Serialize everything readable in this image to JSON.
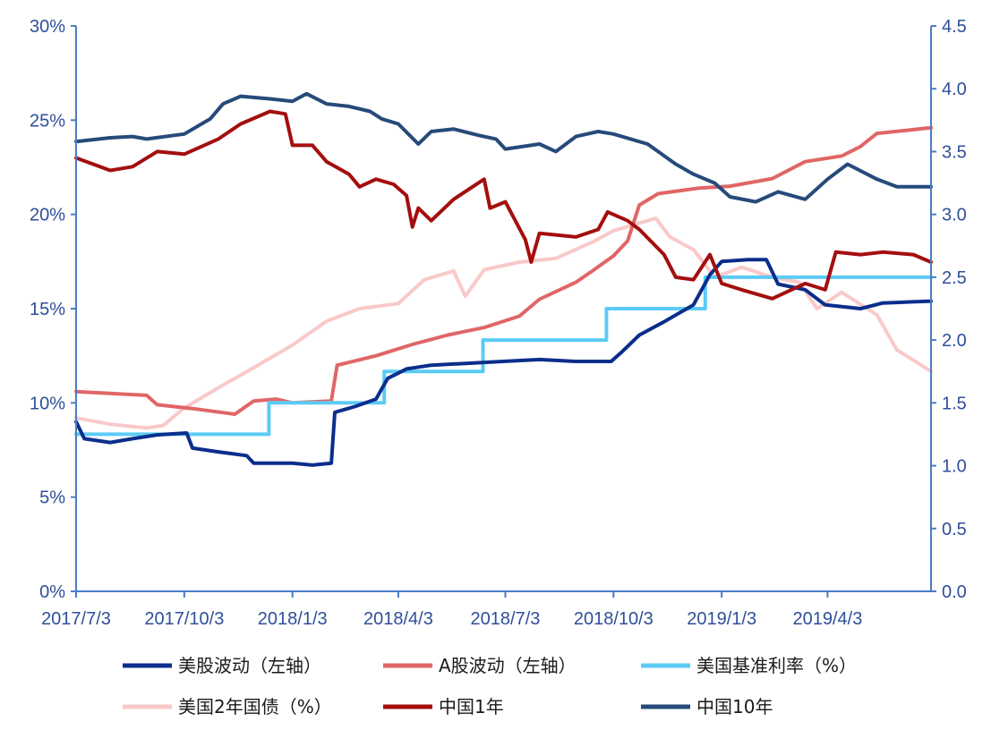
{
  "chart_data": {
    "type": "line",
    "title": "",
    "y_left": {
      "ticks": [
        "0%",
        "5%",
        "10%",
        "15%",
        "20%",
        "25%",
        "30%"
      ],
      "ylim": [
        0,
        30
      ]
    },
    "y_right": {
      "ticks": [
        "0.0",
        "0.5",
        "1.0",
        "1.5",
        "2.0",
        "2.5",
        "3.0",
        "3.5",
        "4.0",
        "4.5"
      ],
      "ylim": [
        0,
        4.5
      ]
    },
    "x_ticks": [
      "2017/7/3",
      "2017/10/3",
      "2018/1/3",
      "2018/4/3",
      "2018/7/3",
      "2018/10/3",
      "2019/1/3",
      "2019/4/3"
    ],
    "x_range": [
      "2017/7/3",
      "2019/6/30"
    ],
    "grid": false,
    "legend_position": "bottom",
    "series": [
      {
        "name": "美股波动（左轴）",
        "axis": "left",
        "color": "#0b2e8c",
        "width": 4,
        "step": false,
        "points": [
          [
            "2017/7/3",
            9.0
          ],
          [
            "2017/7/10",
            8.1
          ],
          [
            "2017/8/1",
            7.9
          ],
          [
            "2017/8/20",
            8.1
          ],
          [
            "2017/9/10",
            8.3
          ],
          [
            "2017/10/5",
            8.4
          ],
          [
            "2017/10/10",
            7.6
          ],
          [
            "2017/11/1",
            7.4
          ],
          [
            "2017/11/25",
            7.2
          ],
          [
            "2017/12/1",
            6.8
          ],
          [
            "2017/12/15",
            6.8
          ],
          [
            "2018/1/3",
            6.8
          ],
          [
            "2018/1/20",
            6.7
          ],
          [
            "2018/2/5",
            6.8
          ],
          [
            "2018/2/8",
            9.5
          ],
          [
            "2018/2/25",
            9.8
          ],
          [
            "2018/3/15",
            10.2
          ],
          [
            "2018/3/25",
            11.3
          ],
          [
            "2018/4/10",
            11.8
          ],
          [
            "2018/5/1",
            12.0
          ],
          [
            "2018/6/1",
            12.1
          ],
          [
            "2018/7/1",
            12.2
          ],
          [
            "2018/8/1",
            12.3
          ],
          [
            "2018/9/1",
            12.2
          ],
          [
            "2018/10/1",
            12.2
          ],
          [
            "2018/10/10",
            12.7
          ],
          [
            "2018/10/25",
            13.6
          ],
          [
            "2018/11/15",
            14.3
          ],
          [
            "2018/12/10",
            15.2
          ],
          [
            "2018/12/24",
            16.8
          ],
          [
            "2019/1/3",
            17.5
          ],
          [
            "2019/1/25",
            17.6
          ],
          [
            "2019/2/10",
            17.6
          ],
          [
            "2019/2/20",
            16.3
          ],
          [
            "2019/3/15",
            16.0
          ],
          [
            "2019/4/1",
            15.2
          ],
          [
            "2019/5/1",
            15.0
          ],
          [
            "2019/5/20",
            15.3
          ],
          [
            "2019/6/30",
            15.4
          ]
        ]
      },
      {
        "name": "A股波动（左轴）",
        "axis": "left",
        "color": "#e06666",
        "width": 4,
        "step": false,
        "points": [
          [
            "2017/7/3",
            10.6
          ],
          [
            "2017/8/1",
            10.5
          ],
          [
            "2017/9/1",
            10.4
          ],
          [
            "2017/9/10",
            9.9
          ],
          [
            "2017/10/10",
            9.7
          ],
          [
            "2017/11/15",
            9.4
          ],
          [
            "2017/12/1",
            10.1
          ],
          [
            "2017/12/20",
            10.2
          ],
          [
            "2018/1/3",
            10.0
          ],
          [
            "2018/2/5",
            10.1
          ],
          [
            "2018/2/10",
            12.0
          ],
          [
            "2018/3/15",
            12.5
          ],
          [
            "2018/4/15",
            13.1
          ],
          [
            "2018/5/15",
            13.6
          ],
          [
            "2018/6/15",
            14.0
          ],
          [
            "2018/7/15",
            14.6
          ],
          [
            "2018/8/1",
            15.5
          ],
          [
            "2018/9/1",
            16.4
          ],
          [
            "2018/9/15",
            17.0
          ],
          [
            "2018/10/3",
            17.8
          ],
          [
            "2018/10/15",
            18.6
          ],
          [
            "2018/10/25",
            20.5
          ],
          [
            "2018/11/10",
            21.1
          ],
          [
            "2018/12/15",
            21.4
          ],
          [
            "2019/1/10",
            21.5
          ],
          [
            "2019/2/15",
            21.9
          ],
          [
            "2019/3/15",
            22.8
          ],
          [
            "2019/4/15",
            23.1
          ],
          [
            "2019/5/1",
            23.6
          ],
          [
            "2019/5/15",
            24.3
          ],
          [
            "2019/6/30",
            24.6
          ]
        ]
      },
      {
        "name": "美国基准利率（%）",
        "axis": "right",
        "color": "#5ccbf5",
        "width": 4,
        "step": true,
        "points": [
          [
            "2017/7/3",
            1.25
          ],
          [
            "2017/12/14",
            1.5
          ],
          [
            "2018/3/22",
            1.75
          ],
          [
            "2018/6/14",
            2.0
          ],
          [
            "2018/9/27",
            2.25
          ],
          [
            "2018/12/20",
            2.5
          ],
          [
            "2019/6/30",
            2.5
          ]
        ]
      },
      {
        "name": "美国2年国债（%）",
        "axis": "right",
        "color": "#f9c9c9",
        "width": 4,
        "step": false,
        "points": [
          [
            "2017/7/3",
            1.38
          ],
          [
            "2017/8/1",
            1.33
          ],
          [
            "2017/9/1",
            1.3
          ],
          [
            "2017/9/15",
            1.32
          ],
          [
            "2017/10/3",
            1.46
          ],
          [
            "2017/11/1",
            1.62
          ],
          [
            "2017/12/1",
            1.78
          ],
          [
            "2018/1/3",
            1.96
          ],
          [
            "2018/2/1",
            2.15
          ],
          [
            "2018/3/1",
            2.25
          ],
          [
            "2018/4/3",
            2.29
          ],
          [
            "2018/4/25",
            2.48
          ],
          [
            "2018/5/20",
            2.55
          ],
          [
            "2018/5/30",
            2.35
          ],
          [
            "2018/6/15",
            2.56
          ],
          [
            "2018/7/15",
            2.62
          ],
          [
            "2018/8/15",
            2.65
          ],
          [
            "2018/9/15",
            2.78
          ],
          [
            "2018/10/3",
            2.87
          ],
          [
            "2018/11/8",
            2.97
          ],
          [
            "2018/11/20",
            2.82
          ],
          [
            "2018/12/10",
            2.72
          ],
          [
            "2018/12/28",
            2.5
          ],
          [
            "2019/1/20",
            2.58
          ],
          [
            "2019/2/15",
            2.5
          ],
          [
            "2019/3/10",
            2.46
          ],
          [
            "2019/3/25",
            2.25
          ],
          [
            "2019/4/15",
            2.38
          ],
          [
            "2019/5/15",
            2.2
          ],
          [
            "2019/6/1",
            1.92
          ],
          [
            "2019/6/15",
            1.84
          ],
          [
            "2019/6/30",
            1.75
          ]
        ]
      },
      {
        "name": "中国1年",
        "axis": "right",
        "color": "#a40e0e",
        "width": 4,
        "step": false,
        "points": [
          [
            "2017/7/3",
            3.45
          ],
          [
            "2017/8/1",
            3.35
          ],
          [
            "2017/8/20",
            3.38
          ],
          [
            "2017/9/10",
            3.5
          ],
          [
            "2017/10/3",
            3.48
          ],
          [
            "2017/11/1",
            3.6
          ],
          [
            "2017/11/20",
            3.72
          ],
          [
            "2017/12/15",
            3.82
          ],
          [
            "2017/12/28",
            3.8
          ],
          [
            "2018/1/3",
            3.55
          ],
          [
            "2018/1/20",
            3.55
          ],
          [
            "2018/2/1",
            3.42
          ],
          [
            "2018/2/20",
            3.32
          ],
          [
            "2018/3/1",
            3.22
          ],
          [
            "2018/3/15",
            3.28
          ],
          [
            "2018/3/30",
            3.24
          ],
          [
            "2018/4/10",
            3.15
          ],
          [
            "2018/4/15",
            2.9
          ],
          [
            "2018/4/20",
            3.05
          ],
          [
            "2018/5/1",
            2.95
          ],
          [
            "2018/5/20",
            3.12
          ],
          [
            "2018/6/15",
            3.28
          ],
          [
            "2018/6/20",
            3.05
          ],
          [
            "2018/7/3",
            3.1
          ],
          [
            "2018/7/20",
            2.8
          ],
          [
            "2018/7/25",
            2.62
          ],
          [
            "2018/8/1",
            2.85
          ],
          [
            "2018/9/1",
            2.82
          ],
          [
            "2018/9/20",
            2.88
          ],
          [
            "2018/9/28",
            3.02
          ],
          [
            "2018/10/15",
            2.95
          ],
          [
            "2018/10/25",
            2.88
          ],
          [
            "2018/11/15",
            2.68
          ],
          [
            "2018/11/25",
            2.5
          ],
          [
            "2018/12/10",
            2.48
          ],
          [
            "2018/12/24",
            2.68
          ],
          [
            "2019/1/3",
            2.45
          ],
          [
            "2019/1/20",
            2.4
          ],
          [
            "2019/2/15",
            2.33
          ],
          [
            "2019/3/15",
            2.45
          ],
          [
            "2019/4/1",
            2.4
          ],
          [
            "2019/4/10",
            2.7
          ],
          [
            "2019/5/1",
            2.68
          ],
          [
            "2019/5/20",
            2.7
          ],
          [
            "2019/6/15",
            2.68
          ],
          [
            "2019/6/30",
            2.62
          ]
        ]
      },
      {
        "name": "中国10年",
        "axis": "right",
        "color": "#264a7a",
        "width": 4,
        "step": false,
        "points": [
          [
            "2017/7/3",
            3.58
          ],
          [
            "2017/8/1",
            3.61
          ],
          [
            "2017/8/20",
            3.62
          ],
          [
            "2017/9/1",
            3.6
          ],
          [
            "2017/10/3",
            3.64
          ],
          [
            "2017/10/25",
            3.76
          ],
          [
            "2017/11/5",
            3.88
          ],
          [
            "2017/11/20",
            3.94
          ],
          [
            "2017/12/15",
            3.92
          ],
          [
            "2018/1/3",
            3.9
          ],
          [
            "2018/1/15",
            3.96
          ],
          [
            "2018/2/1",
            3.88
          ],
          [
            "2018/2/20",
            3.86
          ],
          [
            "2018/3/10",
            3.82
          ],
          [
            "2018/3/20",
            3.76
          ],
          [
            "2018/4/3",
            3.72
          ],
          [
            "2018/4/20",
            3.56
          ],
          [
            "2018/5/1",
            3.66
          ],
          [
            "2018/5/20",
            3.68
          ],
          [
            "2018/6/10",
            3.63
          ],
          [
            "2018/6/25",
            3.6
          ],
          [
            "2018/7/3",
            3.52
          ],
          [
            "2018/8/1",
            3.56
          ],
          [
            "2018/8/15",
            3.5
          ],
          [
            "2018/9/1",
            3.62
          ],
          [
            "2018/9/20",
            3.66
          ],
          [
            "2018/10/3",
            3.64
          ],
          [
            "2018/11/1",
            3.56
          ],
          [
            "2018/11/25",
            3.4
          ],
          [
            "2018/12/10",
            3.32
          ],
          [
            "2018/12/28",
            3.25
          ],
          [
            "2019/1/10",
            3.14
          ],
          [
            "2019/2/1",
            3.1
          ],
          [
            "2019/2/20",
            3.18
          ],
          [
            "2019/3/15",
            3.12
          ],
          [
            "2019/4/3",
            3.28
          ],
          [
            "2019/4/20",
            3.4
          ],
          [
            "2019/5/15",
            3.28
          ],
          [
            "2019/6/1",
            3.22
          ],
          [
            "2019/6/30",
            3.22
          ]
        ]
      }
    ],
    "legend": [
      {
        "series": 0,
        "label": "美股波动（左轴）"
      },
      {
        "series": 1,
        "label": "A股波动（左轴）"
      },
      {
        "series": 2,
        "label": "美国基准利率（%）"
      },
      {
        "series": 3,
        "label": "美国2年国债（%）"
      },
      {
        "series": 4,
        "label": "中国1年"
      },
      {
        "series": 5,
        "label": "中国10年"
      }
    ],
    "colors": {
      "axis": "#4a7cc7",
      "tick_text": "#2f4f9a"
    }
  }
}
